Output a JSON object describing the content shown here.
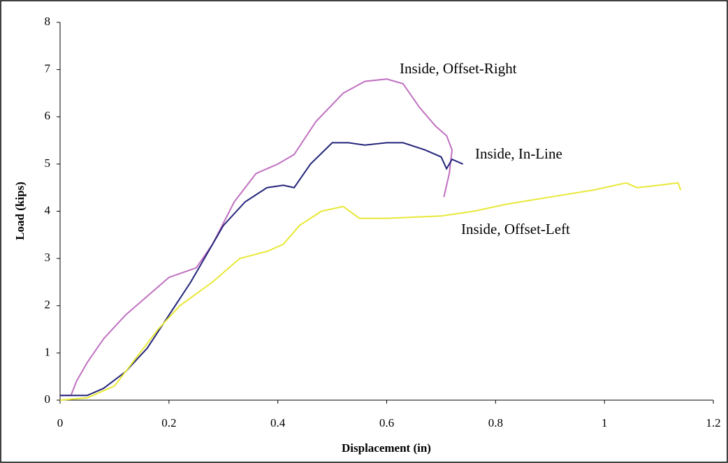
{
  "chart_data": {
    "type": "line",
    "x_label": "Displacement (in)",
    "y_label": "Load (kips)",
    "xlim": [
      0,
      1.2
    ],
    "xticks": [
      0,
      0.2,
      0.4,
      0.6,
      0.8,
      1,
      1.2
    ],
    "ylim": [
      0,
      8
    ],
    "yticks": [
      0,
      1,
      2,
      3,
      4,
      5,
      6,
      7,
      8
    ],
    "series": [
      {
        "name": "Inside, Offset-Right",
        "color": "#c070c0",
        "x": [
          0,
          0.02,
          0.03,
          0.05,
          0.08,
          0.12,
          0.16,
          0.2,
          0.25,
          0.28,
          0.32,
          0.36,
          0.4,
          0.43,
          0.47,
          0.52,
          0.56,
          0.6,
          0.63,
          0.66,
          0.69,
          0.71,
          0.72,
          0.715,
          0.705
        ],
        "values": [
          0.1,
          0.1,
          0.4,
          0.8,
          1.3,
          1.8,
          2.2,
          2.6,
          2.8,
          3.3,
          4.2,
          4.8,
          5.0,
          5.2,
          5.9,
          6.5,
          6.75,
          6.8,
          6.7,
          6.2,
          5.8,
          5.6,
          5.3,
          4.8,
          4.3
        ]
      },
      {
        "name": "Inside, In-Line",
        "color": "#24247a",
        "x": [
          0,
          0.05,
          0.08,
          0.12,
          0.16,
          0.2,
          0.24,
          0.27,
          0.3,
          0.34,
          0.38,
          0.41,
          0.43,
          0.46,
          0.5,
          0.53,
          0.56,
          0.6,
          0.63,
          0.67,
          0.7,
          0.71,
          0.72,
          0.74
        ],
        "values": [
          0.1,
          0.1,
          0.25,
          0.6,
          1.1,
          1.8,
          2.5,
          3.1,
          3.7,
          4.2,
          4.5,
          4.55,
          4.5,
          5.0,
          5.45,
          5.45,
          5.4,
          5.45,
          5.45,
          5.3,
          5.15,
          4.9,
          5.1,
          5.0
        ]
      },
      {
        "name": "Inside, Offset-Left",
        "color": "#e8e838",
        "x": [
          0,
          0.05,
          0.1,
          0.14,
          0.18,
          0.22,
          0.28,
          0.33,
          0.38,
          0.41,
          0.44,
          0.48,
          0.52,
          0.55,
          0.6,
          0.7,
          0.76,
          0.82,
          0.9,
          0.98,
          1.04,
          1.06,
          1.1,
          1.135,
          1.14
        ],
        "values": [
          0,
          0.05,
          0.3,
          0.9,
          1.5,
          2.0,
          2.5,
          3.0,
          3.15,
          3.3,
          3.7,
          4.0,
          4.1,
          3.85,
          3.85,
          3.9,
          4.0,
          4.15,
          4.3,
          4.45,
          4.6,
          4.5,
          4.55,
          4.6,
          4.45
        ]
      }
    ]
  }
}
